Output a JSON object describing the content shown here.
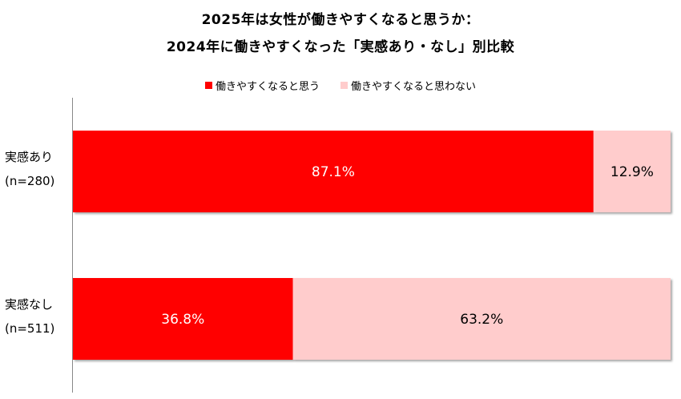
{
  "chart_data": {
    "type": "bar",
    "orientation": "horizontal",
    "stacked": true,
    "title": "2025年は女性が働きやすくなると思うか：",
    "subtitle": "2024年に働きやすくなった「実感あり・なし」別比較",
    "categories": [
      {
        "label": "実感あり",
        "n": "(n=280)"
      },
      {
        "label": "実感なし",
        "n": "(n=511)"
      }
    ],
    "series": [
      {
        "name": "働きやすくなると思う",
        "color": "#ff0000",
        "text_color": "#ffffff",
        "values": [
          87.1,
          36.8
        ]
      },
      {
        "name": "働きやすくなると思わない",
        "color": "#ffcccc",
        "text_color": "#000000",
        "values": [
          12.9,
          63.2
        ]
      }
    ],
    "value_suffix": "%",
    "xlim": [
      0,
      100
    ],
    "legend_position": "top"
  }
}
